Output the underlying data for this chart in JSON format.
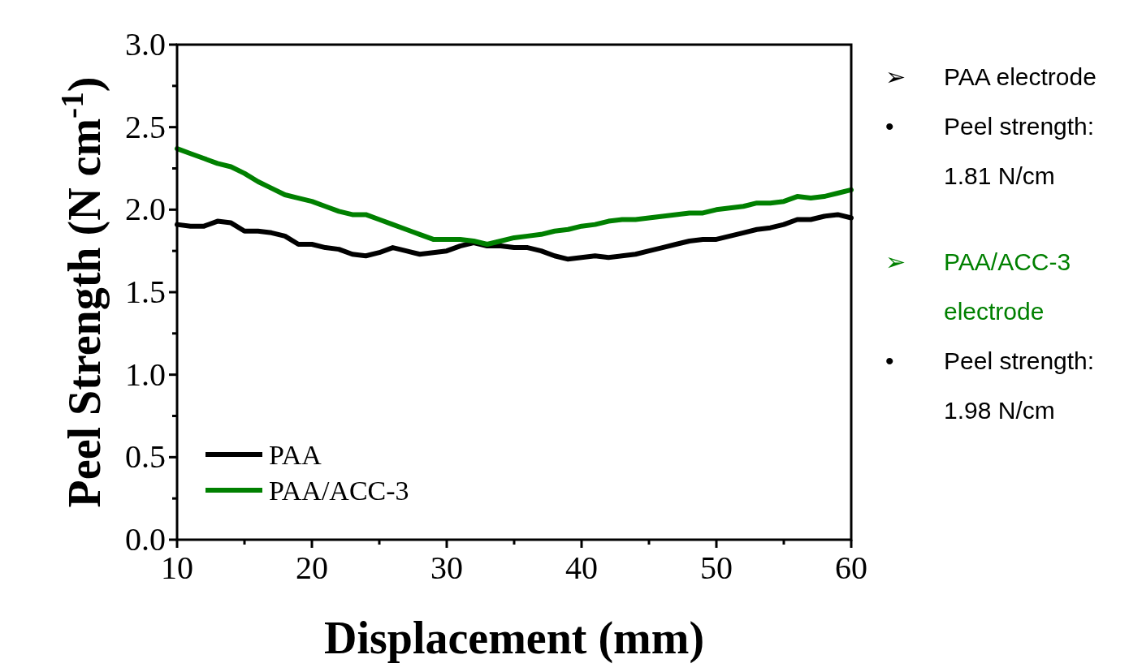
{
  "chart_data": {
    "type": "line",
    "xlabel": "Displacement (mm)",
    "ylabel": "Peel Strength (N cm$^{-1}$)",
    "x": [
      10,
      11,
      12,
      13,
      14,
      15,
      16,
      17,
      18,
      19,
      20,
      21,
      22,
      23,
      24,
      25,
      26,
      27,
      28,
      29,
      30,
      31,
      32,
      33,
      34,
      35,
      36,
      37,
      38,
      39,
      40,
      41,
      42,
      43,
      44,
      45,
      46,
      47,
      48,
      49,
      50,
      51,
      52,
      53,
      54,
      55,
      56,
      57,
      58,
      59,
      60
    ],
    "series": [
      {
        "name": "PAA",
        "color": "#000000",
        "values": [
          1.91,
          1.9,
          1.9,
          1.93,
          1.92,
          1.87,
          1.87,
          1.86,
          1.84,
          1.79,
          1.79,
          1.77,
          1.76,
          1.73,
          1.72,
          1.74,
          1.77,
          1.75,
          1.73,
          1.74,
          1.75,
          1.78,
          1.8,
          1.78,
          1.78,
          1.77,
          1.77,
          1.75,
          1.72,
          1.7,
          1.71,
          1.72,
          1.71,
          1.72,
          1.73,
          1.75,
          1.77,
          1.79,
          1.81,
          1.82,
          1.82,
          1.84,
          1.86,
          1.88,
          1.89,
          1.91,
          1.94,
          1.94,
          1.96,
          1.97,
          1.95
        ]
      },
      {
        "name": "PAA/ACC-3",
        "color": "#008000",
        "values": [
          2.37,
          2.34,
          2.31,
          2.28,
          2.26,
          2.22,
          2.17,
          2.13,
          2.09,
          2.07,
          2.05,
          2.02,
          1.99,
          1.97,
          1.97,
          1.94,
          1.91,
          1.88,
          1.85,
          1.82,
          1.82,
          1.82,
          1.81,
          1.79,
          1.81,
          1.83,
          1.84,
          1.85,
          1.87,
          1.88,
          1.9,
          1.91,
          1.93,
          1.94,
          1.94,
          1.95,
          1.96,
          1.97,
          1.98,
          1.98,
          2.0,
          2.01,
          2.02,
          2.04,
          2.04,
          2.05,
          2.08,
          2.07,
          2.08,
          2.1,
          2.12
        ]
      }
    ],
    "xlim": [
      10,
      60
    ],
    "xticks": [
      10,
      {
        "value": 15,
        "label": null
      },
      20,
      {
        "value": 25,
        "label": null
      },
      30,
      {
        "value": 35,
        "label": null
      },
      40,
      {
        "value": 45,
        "label": null
      },
      50,
      {
        "value": 55,
        "label": null
      },
      60
    ],
    "ylim": [
      0,
      3
    ],
    "yticks": [
      {
        "value": 0,
        "label": "0.0"
      },
      {
        "value": 0.25,
        "label": null
      },
      {
        "value": 0.5,
        "label": "0.5"
      },
      {
        "value": 0.75,
        "label": null
      },
      {
        "value": 1,
        "label": "1.0"
      },
      {
        "value": 1.25,
        "label": null
      },
      {
        "value": 1.5,
        "label": "1.5"
      },
      {
        "value": 1.75,
        "label": null
      },
      {
        "value": 2,
        "label": "2.0"
      },
      {
        "value": 2.25,
        "label": null
      },
      {
        "value": 2.5,
        "label": "2.5"
      },
      {
        "value": 2.75,
        "label": null
      },
      {
        "value": 3,
        "label": "3.0"
      }
    ],
    "legend": "bottom left",
    "grid": false,
    "line_style": "solid",
    "marker": "none",
    "annotations": [
      "➢ PAA electrode",
      "• Peel strength: 1.81 N/cm",
      "➢ PAA/ACC-3 electrode",
      "• Peel strength: 1.98 N/cm"
    ]
  }
}
